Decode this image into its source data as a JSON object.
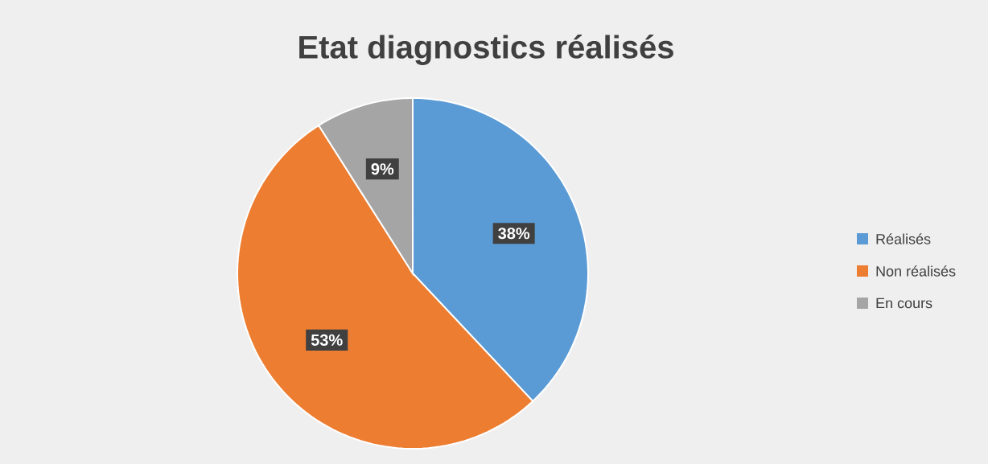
{
  "chart_data": {
    "type": "pie",
    "title": "Etat diagnostics réalisés",
    "categories": [
      "Réalisés",
      "Non réalisés",
      "En cours"
    ],
    "values": [
      38,
      53,
      9
    ],
    "colors": [
      "#5b9bd5",
      "#ed7d31",
      "#a5a5a5"
    ],
    "value_labels": [
      "38%",
      "53%",
      "9%"
    ],
    "legend": "right"
  }
}
